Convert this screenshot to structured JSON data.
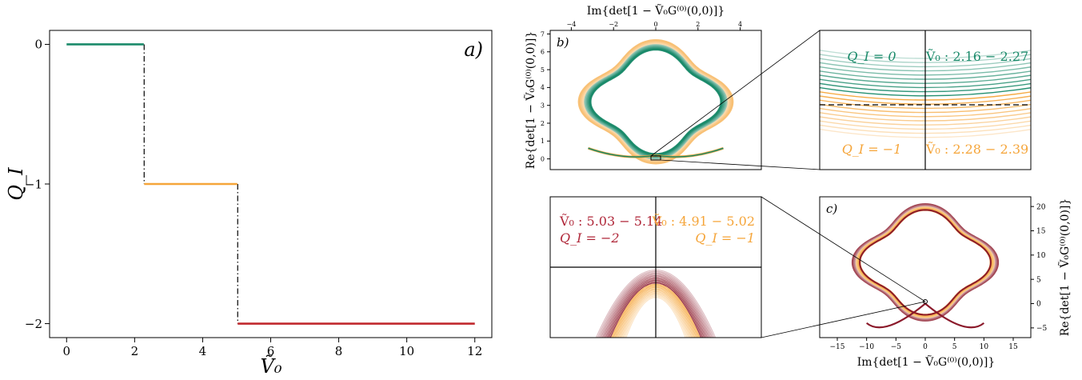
{
  "chart_data": [
    {
      "panel": "a)",
      "type": "line",
      "xlabel": "Ṽ₀",
      "ylabel": "Q_I",
      "xlim": [
        -0.5,
        12.5
      ],
      "ylim": [
        -2.1,
        0.1
      ],
      "xticks": [
        "0",
        "2",
        "4",
        "6",
        "8",
        "10",
        "12"
      ],
      "xtick_values": [
        0,
        2,
        4,
        6,
        8,
        10,
        12
      ],
      "yticks": [
        "0",
        "−1",
        "−2"
      ],
      "ytick_values": [
        0,
        -1,
        -2
      ],
      "series": [
        {
          "color": "#1a8a6a",
          "x": [
            0,
            2.27
          ],
          "y": [
            0,
            0
          ]
        },
        {
          "color": "#f5a53a",
          "x": [
            2.28,
            5.02
          ],
          "y": [
            -1,
            -1
          ]
        },
        {
          "color": "#c0282d",
          "x": [
            5.03,
            12
          ],
          "y": [
            -2,
            -2
          ]
        }
      ],
      "transitions": [
        {
          "x": 2.28,
          "y": [
            0,
            -1
          ]
        },
        {
          "x": 5.03,
          "y": [
            -1,
            -2
          ]
        }
      ]
    },
    {
      "panel": "b)",
      "type": "line",
      "xlabel": "Im{det[1 − Ṽ₀G⁽⁰⁾(0,0)]}",
      "ylabel": "Re{det[1 − Ṽ₀G⁽⁰⁾(0,0)]}",
      "xlim": [
        -5,
        5
      ],
      "ylim": [
        -0.6,
        7.2
      ],
      "xticks": [
        "−4",
        "−2",
        "0",
        "2",
        "4"
      ],
      "xtick_values": [
        -4,
        -2,
        0,
        2,
        4
      ],
      "yticks": [
        "0",
        "1",
        "2",
        "3",
        "4",
        "5",
        "6",
        "7"
      ],
      "ytick_values": [
        0,
        1,
        2,
        3,
        4,
        5,
        6,
        7
      ],
      "series": [
        {
          "color": "#1a8a6a",
          "range": [
            2.16,
            2.27
          ]
        },
        {
          "color": "#f5a53a",
          "range": [
            2.28,
            2.39
          ]
        }
      ],
      "inset": {
        "labels": [
          "Q_I = 0",
          "Ṽ₀ : 2.16 − 2.27",
          "Q_I = −1",
          "Ṽ₀ : 2.28 − 2.39"
        ]
      }
    },
    {
      "panel": "c)",
      "type": "line",
      "xlabel": "Im{det[1 − Ṽ₀G⁽⁰⁾(0,0)]}",
      "ylabel": "Re{det[1 − Ṽ₀G⁽⁰⁾(0,0)]}",
      "xlim": [
        -18,
        18
      ],
      "ylim": [
        -7,
        22
      ],
      "xticks": [
        "−15",
        "−10",
        "−5",
        "0",
        "5",
        "10",
        "15"
      ],
      "xtick_values": [
        -15,
        -10,
        -5,
        0,
        5,
        10,
        15
      ],
      "yticks": [
        "−5",
        "0",
        "5",
        "10",
        "15",
        "20"
      ],
      "ytick_values": [
        -5,
        0,
        5,
        10,
        15,
        20
      ],
      "series": [
        {
          "color": "#8b1a2b",
          "range": [
            5.03,
            5.14
          ]
        },
        {
          "color": "#f5a53a",
          "range": [
            4.91,
            5.02
          ]
        }
      ],
      "inset": {
        "labels": [
          "Ṽ₀ : 5.03 − 5.14",
          "Q_I = −2",
          "Ṽ₀ : 4.91 − 5.02",
          "Q_I = −1"
        ]
      }
    }
  ]
}
